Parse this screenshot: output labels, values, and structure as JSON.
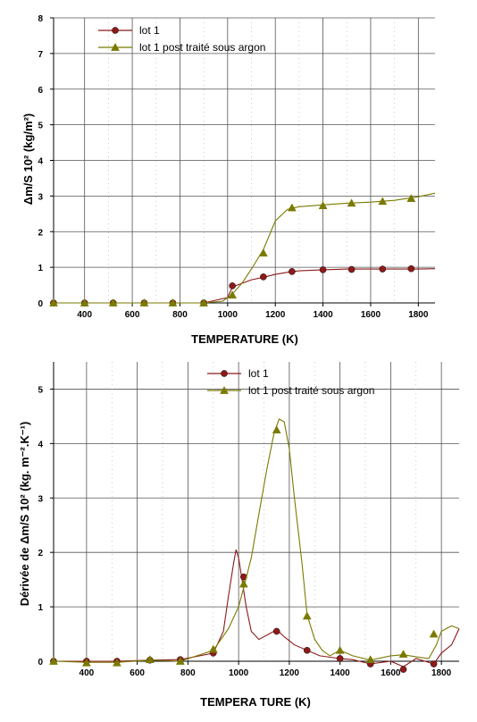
{
  "colors": {
    "lot1": "#8b1a1a",
    "lot1_argon": "#7a7a00",
    "grid": "#555555"
  },
  "chart_data": [
    {
      "type": "line",
      "xlabel": "TEMPERATURE (K)",
      "ylabel": "Δm/S 10² (kg/m²)",
      "xlim": [
        270,
        1870
      ],
      "ylim": [
        0,
        8
      ],
      "xticks": [
        400,
        600,
        800,
        1000,
        1200,
        1400,
        1600,
        1800
      ],
      "yticks": [
        0,
        1,
        2,
        3,
        4,
        5,
        6,
        7,
        8
      ],
      "grid": true,
      "legend_position": "top-left",
      "series": [
        {
          "name": "lot 1",
          "marker": "circle",
          "x": [
            270,
            400,
            520,
            650,
            770,
            900,
            1000,
            1020,
            1060,
            1100,
            1150,
            1200,
            1260,
            1300,
            1400,
            1500,
            1600,
            1700,
            1800,
            1870
          ],
          "y": [
            0,
            0,
            0,
            0,
            0,
            0,
            0.15,
            0.45,
            0.55,
            0.65,
            0.72,
            0.8,
            0.87,
            0.9,
            0.93,
            0.95,
            0.95,
            0.95,
            0.95,
            0.96
          ],
          "markers_x": [
            270,
            400,
            520,
            650,
            770,
            900,
            1020,
            1150,
            1270,
            1400,
            1520,
            1650,
            1770
          ],
          "markers_y": [
            0,
            0,
            0,
            0,
            0,
            0,
            0.48,
            0.73,
            0.88,
            0.93,
            0.94,
            0.95,
            0.96
          ]
        },
        {
          "name": "lot 1 post traité sous argon",
          "marker": "triangle",
          "x": [
            270,
            400,
            520,
            650,
            770,
            900,
            980,
            1020,
            1060,
            1100,
            1150,
            1200,
            1250,
            1300,
            1400,
            1500,
            1600,
            1700,
            1800,
            1870
          ],
          "y": [
            0,
            0,
            0,
            0,
            0,
            0,
            0.05,
            0.25,
            0.55,
            0.95,
            1.5,
            2.3,
            2.62,
            2.7,
            2.75,
            2.8,
            2.83,
            2.88,
            2.98,
            3.08
          ],
          "markers_x": [
            270,
            400,
            520,
            650,
            770,
            900,
            1020,
            1150,
            1270,
            1400,
            1520,
            1650,
            1770
          ],
          "markers_y": [
            0,
            0,
            0,
            0,
            0,
            0,
            0.22,
            1.4,
            2.67,
            2.73,
            2.8,
            2.85,
            2.93
          ]
        }
      ]
    },
    {
      "type": "line",
      "xlabel": "TEMPERA TURE (K)",
      "ylabel": "Dérivée de Δm/S 10² (kg. m⁻².K⁻¹)",
      "xlim": [
        270,
        1870
      ],
      "ylim": [
        0,
        5.5
      ],
      "xticks": [
        400,
        600,
        800,
        1000,
        1200,
        1400,
        1600,
        1800
      ],
      "yticks": [
        0,
        1,
        2,
        3,
        4,
        5
      ],
      "grid": true,
      "legend_position": "top-right",
      "series": [
        {
          "name": "lot 1",
          "marker": "circle",
          "x": [
            270,
            400,
            520,
            650,
            770,
            900,
            940,
            960,
            980,
            990,
            1000,
            1010,
            1030,
            1050,
            1080,
            1120,
            1150,
            1180,
            1220,
            1270,
            1320,
            1400,
            1450,
            1520,
            1600,
            1650,
            1700,
            1770,
            1800,
            1840,
            1870
          ],
          "y": [
            0,
            0,
            0,
            0.02,
            0.03,
            0.15,
            0.55,
            1.2,
            1.8,
            2.05,
            1.9,
            1.6,
            1.0,
            0.55,
            0.4,
            0.5,
            0.58,
            0.45,
            0.3,
            0.2,
            0.1,
            0.05,
            0.03,
            -0.05,
            0.0,
            -0.1,
            0.05,
            -0.05,
            0.15,
            0.3,
            0.6
          ],
          "markers_x": [
            270,
            400,
            520,
            650,
            770,
            900,
            1020,
            1150,
            1270,
            1400,
            1520,
            1650,
            1770
          ],
          "markers_y": [
            0,
            0,
            0,
            0.02,
            0.03,
            0.15,
            1.55,
            0.55,
            0.2,
            0.05,
            -0.05,
            -0.15,
            -0.05
          ]
        },
        {
          "name": "lot 1 post traité sous argon",
          "marker": "triangle",
          "x": [
            270,
            400,
            520,
            650,
            770,
            900,
            960,
            1000,
            1020,
            1050,
            1080,
            1110,
            1140,
            1160,
            1180,
            1200,
            1220,
            1250,
            1270,
            1300,
            1330,
            1360,
            1400,
            1450,
            1520,
            1600,
            1650,
            1700,
            1750,
            1780,
            1800,
            1840,
            1870
          ],
          "y": [
            0,
            -0.02,
            -0.02,
            0.02,
            0.0,
            0.2,
            0.6,
            1.0,
            1.35,
            1.9,
            2.7,
            3.5,
            4.2,
            4.45,
            4.4,
            3.9,
            3.0,
            1.8,
            0.85,
            0.4,
            0.2,
            0.1,
            0.2,
            0.1,
            0.02,
            0.1,
            0.12,
            0.08,
            0.05,
            0.3,
            0.55,
            0.65,
            0.6
          ],
          "markers_x": [
            270,
            400,
            520,
            650,
            770,
            900,
            1020,
            1150,
            1270,
            1400,
            1520,
            1650,
            1770
          ],
          "markers_y": [
            0,
            -0.03,
            -0.03,
            0.03,
            0.0,
            0.22,
            1.42,
            4.25,
            0.83,
            0.2,
            0.03,
            0.13,
            0.5
          ]
        }
      ]
    }
  ]
}
